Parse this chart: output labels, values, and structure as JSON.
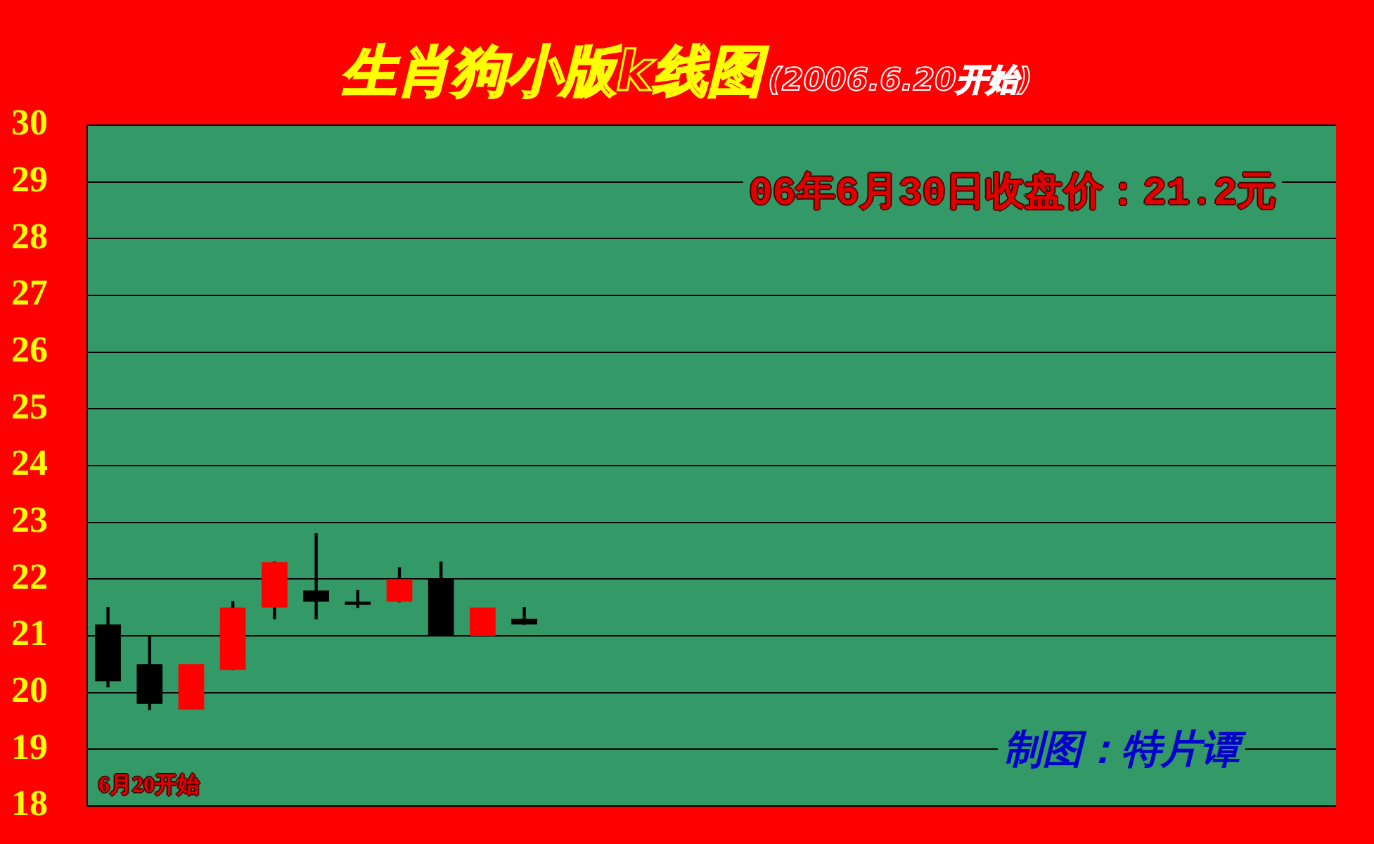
{
  "chart_data": {
    "type": "candlestick",
    "title": "生肖狗小版k线图",
    "subtitle": "(2006.6.20开始)",
    "annotations": [
      "06年6月30日收盘价：21.2元",
      "制图：特片谭",
      "6月20开始"
    ],
    "categories": [
      null,
      null,
      null,
      null,
      null,
      null,
      null,
      null,
      null,
      null,
      null,
      null,
      null,
      null,
      null,
      null,
      null,
      null,
      null,
      null,
      null,
      null,
      null,
      null,
      null,
      null,
      null,
      null,
      null,
      null
    ],
    "ohlc": [
      [
        21.2,
        21.5,
        20.1,
        20.2
      ],
      [
        20.5,
        21.0,
        19.7,
        19.8
      ],
      [
        19.7,
        20.5,
        19.7,
        20.5
      ],
      [
        20.4,
        21.6,
        20.4,
        21.5
      ],
      [
        21.5,
        22.3,
        21.3,
        22.3
      ],
      [
        21.8,
        22.8,
        21.3,
        21.6
      ],
      [
        21.6,
        21.8,
        21.5,
        21.55
      ],
      [
        21.6,
        22.2,
        21.6,
        22.0
      ],
      [
        22.0,
        22.3,
        21.0,
        21.0
      ],
      [
        21.0,
        21.5,
        21.0,
        21.5
      ],
      [
        21.3,
        21.5,
        21.2,
        21.2
      ],
      null,
      null,
      null,
      null,
      null,
      null,
      null,
      null,
      null,
      null,
      null,
      null,
      null,
      null,
      null,
      null,
      null,
      null,
      null
    ],
    "colors": [
      "#000000",
      "#000000",
      "#ff0000",
      "#ff0000",
      "#ff0000",
      "#000000",
      "#000000",
      "#ff0000",
      "#000000",
      "#ff0000",
      "#000000",
      null,
      null,
      null,
      null,
      null,
      null,
      null,
      null,
      null,
      null,
      null,
      null,
      null,
      null,
      null,
      null,
      null,
      null,
      null
    ],
    "ylim": [
      18,
      30
    ],
    "yticks": [
      18,
      19,
      20,
      21,
      22,
      23,
      24,
      25,
      26,
      27,
      28,
      29,
      30
    ],
    "grid": "y",
    "tick_labels": "y"
  }
}
